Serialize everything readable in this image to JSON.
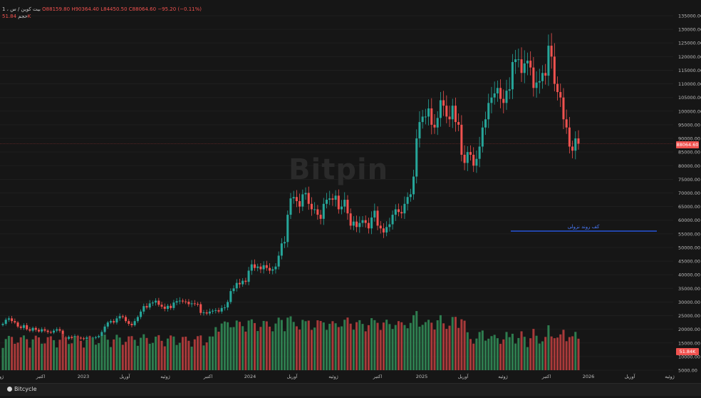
{
  "header": {
    "symbol": "بیت کوین / س",
    "interval": "1 ،",
    "open": "O88159.80",
    "high": "H90364.40",
    "low": "L84450.50",
    "close": "C88064.60",
    "change": "−95.20 (−0.11%)",
    "volume_label": "حجم",
    "volume_value": "51.84K"
  },
  "watermark": "Bitpin",
  "footer": {
    "brand": "Bitcycle"
  },
  "colors": {
    "up": "#26a69a",
    "down": "#f0524f",
    "vol_up": "#2e7d4f",
    "vol_down": "#a83a3a",
    "trendline": "#2962ff",
    "background": "#161616"
  },
  "chart_data": {
    "type": "candlestick",
    "price_axis": {
      "min": 5000,
      "max": 135000,
      "ticks": [
        "135000.00",
        "130000.00",
        "125000.00",
        "120000.00",
        "115000.00",
        "110000.00",
        "105000.00",
        "100000.00",
        "95000.00",
        "90000.00",
        "85000.00",
        "80000.00",
        "75000.00",
        "70000.00",
        "65000.00",
        "60000.00",
        "55000.00",
        "50000.00",
        "45000.00",
        "40000.00",
        "35000.00",
        "30000.00",
        "25000.00",
        "20000.00",
        "15000.00",
        "10000.00",
        "5000.00"
      ]
    },
    "time_axis": [
      "ژو",
      "اکتبر",
      "2023",
      "آوریل",
      "ژوئیه",
      "اکتبر",
      "2024",
      "آوریل",
      "ژوئیه",
      "اکتبر",
      "2025",
      "آوریل",
      "ژوئیه",
      "اکتبر",
      "2026",
      "آوریل",
      "ژوئیه"
    ],
    "last_price": {
      "value": 88064.6,
      "label": "88064.60"
    },
    "volume_last": {
      "label": "51.84K"
    },
    "annotation": {
      "text": "کف روند نزولی",
      "price": 56000,
      "from_date": "2025-07-01",
      "to_date": "2026-06-01"
    },
    "closes": [
      22000,
      23500,
      24000,
      23000,
      22500,
      21000,
      20500,
      21500,
      20000,
      19500,
      20500,
      19800,
      19200,
      20000,
      19500,
      19000,
      18800,
      19500,
      20000,
      19500,
      17000,
      16500,
      17200,
      16800,
      17500,
      16900,
      16700,
      16500,
      17000,
      16800,
      16900,
      17100,
      17500,
      19000,
      21000,
      22500,
      23000,
      22500,
      24000,
      24800,
      24500,
      23000,
      22000,
      21500,
      23000,
      24500,
      26500,
      28500,
      28000,
      29500,
      29800,
      30500,
      29000,
      28300,
      27500,
      28600,
      27800,
      29800,
      30300,
      30500,
      30200,
      30100,
      29200,
      29500,
      29300,
      29200,
      26000,
      26200,
      25800,
      26500,
      26800,
      27000,
      26500,
      27800,
      28000,
      30000,
      34000,
      35000,
      37000,
      36500,
      37800,
      37400,
      41500,
      43800,
      42500,
      43000,
      42000,
      43500,
      42500,
      41500,
      42000,
      43000,
      47000,
      51500,
      52000,
      62000,
      68000,
      68500,
      67000,
      65000,
      69500,
      70000,
      66000,
      64000,
      64000,
      62000,
      60500,
      66000,
      67500,
      68000,
      67500,
      69000,
      64000,
      65000,
      67500,
      62500,
      58000,
      59500,
      57500,
      59000,
      60000,
      59000,
      57000,
      61000,
      63500,
      58000,
      57000,
      55500,
      57500,
      58500,
      62000,
      64000,
      63000,
      62500,
      66000,
      68500,
      69500,
      76000,
      90000,
      96000,
      98000,
      98000,
      101000,
      95000,
      94000,
      97500,
      104000,
      102000,
      98000,
      97000,
      102000,
      96000,
      95000,
      84000,
      81000,
      85000,
      84000,
      80000,
      82500,
      87000,
      94000,
      97000,
      103000,
      105000,
      106500,
      108500,
      104500,
      103000,
      107500,
      108000,
      118000,
      119000,
      119000,
      114000,
      117500,
      118500,
      116000,
      108500,
      110500,
      111000,
      114000,
      113000,
      124000,
      120000,
      110000,
      107000,
      105000,
      97000,
      94000,
      87000,
      85500,
      90000,
      88064.6
    ],
    "note": "Weekly BTC closes approximated from screenshot; volumes approximated (units K)."
  }
}
